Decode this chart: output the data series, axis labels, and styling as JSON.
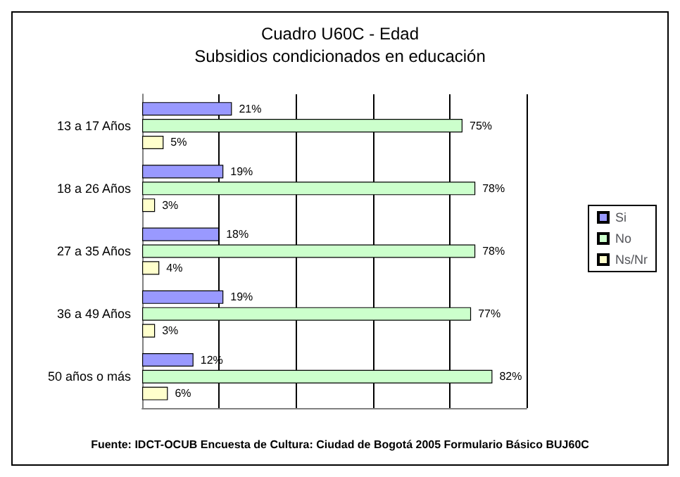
{
  "chart_data": {
    "type": "bar",
    "orientation": "horizontal",
    "title": "Cuadro U60C - Edad",
    "subtitle": "Subsidios condicionados en educación",
    "categories": [
      "13 a 17 Años",
      "18 a 26 Años",
      "27 a 35 Años",
      "36 a 49 Años",
      "50 años o más"
    ],
    "series": [
      {
        "name": "Si",
        "color": "#9999ff",
        "values": [
          21,
          19,
          18,
          19,
          12
        ],
        "value_labels": [
          "21%",
          "19%",
          "18%",
          "19%",
          "12%"
        ]
      },
      {
        "name": "No",
        "color": "#ccffcc",
        "values": [
          75,
          78,
          78,
          77,
          82
        ],
        "value_labels": [
          "75%",
          "78%",
          "78%",
          "77%",
          "82%"
        ]
      },
      {
        "name": "Ns/Nr",
        "color": "#ffffcc",
        "values": [
          5,
          3,
          4,
          3,
          6
        ],
        "value_labels": [
          "5%",
          "3%",
          "4%",
          "3%",
          "6%"
        ]
      }
    ],
    "xlim": [
      0,
      90
    ],
    "xticks": [
      0,
      18,
      36,
      54,
      72,
      90
    ],
    "tick_labels": "y",
    "grid": "x",
    "legend": "right",
    "annotations": [
      "Fuente: IDCT-OCUB Encuesta de Cultura: Ciudad de Bogotá 2005 Formulario Básico BUJ60C"
    ]
  }
}
